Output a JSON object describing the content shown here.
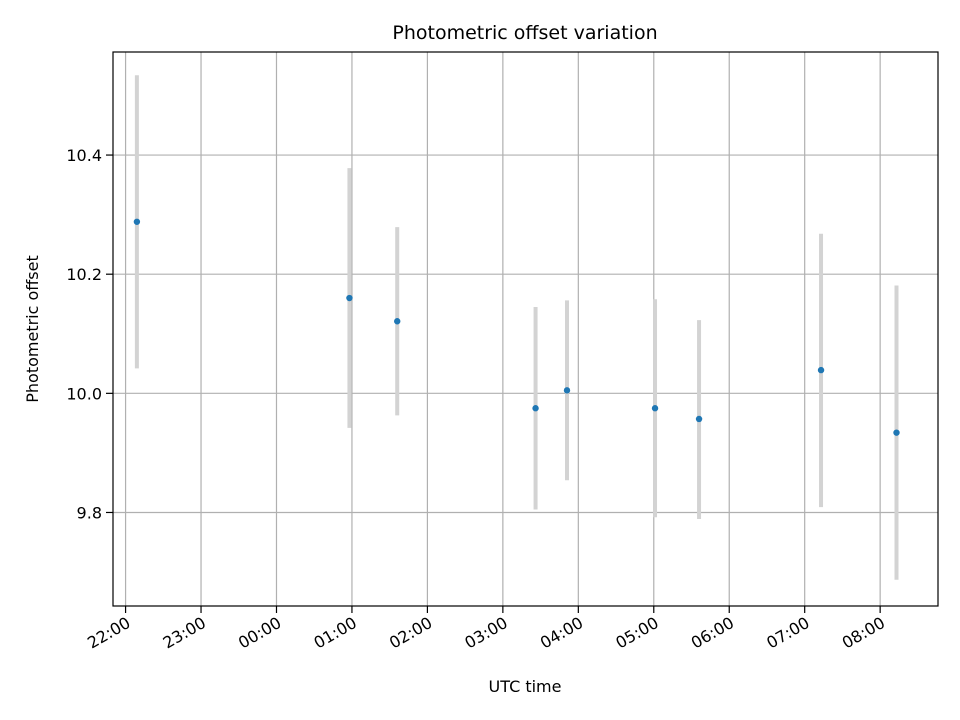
{
  "chart_data": {
    "type": "scatter",
    "title": "Photometric offset variation",
    "xlabel": "UTC time",
    "ylabel": "Photometric offset",
    "x_unit": "hours (UTC, 22:00 of day 1 = 22, next day hours + 24)",
    "xlim": [
      "21:50",
      "08:46"
    ],
    "ylim": [
      9.643,
      10.573
    ],
    "grid": true,
    "x_ticks": [
      "22:00",
      "23:00",
      "00:00",
      "01:00",
      "02:00",
      "03:00",
      "04:00",
      "05:00",
      "06:00",
      "07:00",
      "08:00"
    ],
    "y_ticks": [
      "9.8",
      "10.0",
      "10.2",
      "10.4"
    ],
    "colors": {
      "point": "#1f77b4",
      "errorbar": "#d3d3d3",
      "grid": "#b0b0b0"
    },
    "series": [
      {
        "points": [
          {
            "x": "22:09",
            "y": 10.288,
            "err_low": 10.042,
            "err_high": 10.534
          },
          {
            "x": "00:58",
            "y": 10.16,
            "err_low": 9.942,
            "err_high": 10.378
          },
          {
            "x": "01:36",
            "y": 10.121,
            "err_low": 9.963,
            "err_high": 10.279
          },
          {
            "x": "03:26",
            "y": 9.975,
            "err_low": 9.805,
            "err_high": 10.145
          },
          {
            "x": "03:51",
            "y": 10.005,
            "err_low": 9.854,
            "err_high": 10.156
          },
          {
            "x": "05:01",
            "y": 9.975,
            "err_low": 9.792,
            "err_high": 10.158
          },
          {
            "x": "05:36",
            "y": 9.957,
            "err_low": 9.789,
            "err_high": 10.123
          },
          {
            "x": "07:13",
            "y": 10.039,
            "err_low": 9.809,
            "err_high": 10.268
          },
          {
            "x": "08:13",
            "y": 9.934,
            "err_low": 9.687,
            "err_high": 10.181
          }
        ]
      }
    ]
  }
}
